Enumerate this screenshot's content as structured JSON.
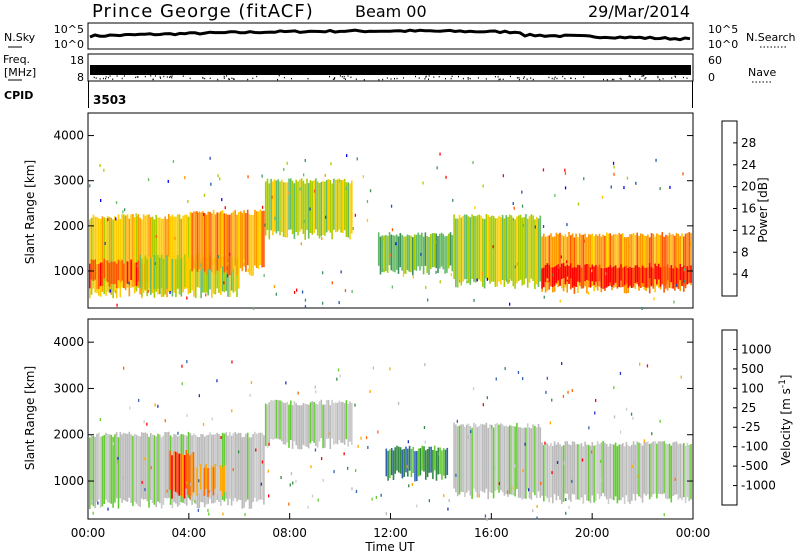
{
  "header": {
    "station": "Prince George (fitACF)",
    "beam": "Beam 00",
    "date": "29/Mar/2014"
  },
  "strip_noise": {
    "left_label": "N.Sky",
    "right_label": "N.Search",
    "left_ticks": [
      "10^5",
      "10^0"
    ],
    "right_ticks": [
      "10^5",
      "10^0"
    ]
  },
  "strip_freq": {
    "left_label_1": "Freq.",
    "left_label_2": "[MHz]",
    "right_label": "Nave",
    "left_ticks": [
      "18",
      "8"
    ],
    "right_ticks": [
      "60",
      "0"
    ]
  },
  "cpid": {
    "label": "CPID",
    "value": "3503"
  },
  "colors": {
    "power": [
      "#0000ff",
      "#1f4fb0",
      "#3f8f5f",
      "#66bb66",
      "#aacc00",
      "#ffcc00",
      "#ff9900",
      "#ff5500",
      "#ff0000"
    ],
    "velocity": [
      "#2030c0",
      "#3060b0",
      "#338844",
      "#66cc33",
      "#bbbbbb",
      "#cccccc",
      "#ffaa00",
      "#ff6600",
      "#ff0000"
    ]
  },
  "chart_data": [
    {
      "type": "heatmap",
      "name": "power",
      "title": "",
      "xlabel": "",
      "ylabel": "Slant Range [km]",
      "xlim": [
        0,
        24
      ],
      "ylim": [
        180,
        4500
      ],
      "yticks": [
        1000,
        2000,
        3000,
        4000
      ],
      "colorbar_label": "Power [dB]",
      "colorbar_ticks": [
        "28",
        "24",
        "20",
        "16",
        "12",
        "8",
        "4"
      ],
      "bands": [
        {
          "t0": 0.0,
          "t1": 4.0,
          "r0": 500,
          "r1": 2200,
          "level": 5
        },
        {
          "t0": 0.0,
          "t1": 2.5,
          "r0": 700,
          "r1": 1200,
          "level": 7
        },
        {
          "t0": 2.0,
          "t1": 6.0,
          "r0": 500,
          "r1": 1300,
          "level": 4
        },
        {
          "t0": 4.0,
          "t1": 7.0,
          "r0": 1000,
          "r1": 2300,
          "level": 6
        },
        {
          "t0": 7.0,
          "t1": 10.5,
          "r0": 1800,
          "r1": 3000,
          "level": 4
        },
        {
          "t0": 11.5,
          "t1": 14.5,
          "r0": 1000,
          "r1": 1800,
          "level": 3
        },
        {
          "t0": 14.5,
          "t1": 18.0,
          "r0": 700,
          "r1": 2200,
          "level": 4
        },
        {
          "t0": 18.0,
          "t1": 24.0,
          "r0": 600,
          "r1": 1800,
          "level": 6
        },
        {
          "t0": 18.0,
          "t1": 24.0,
          "r0": 700,
          "r1": 1100,
          "level": 8
        }
      ]
    },
    {
      "type": "heatmap",
      "name": "velocity",
      "title": "",
      "xlabel": "Time UT",
      "ylabel": "Slant Range [km]",
      "xlim": [
        0,
        24
      ],
      "ylim": [
        180,
        4500
      ],
      "xticks": [
        "00:00",
        "04:00",
        "08:00",
        "12:00",
        "16:00",
        "20:00",
        "00:00"
      ],
      "yticks": [
        1000,
        2000,
        3000,
        4000
      ],
      "colorbar_label": "Velocity [m s^-1]",
      "colorbar_ticks": [
        "1000",
        "500",
        "100",
        "25",
        "-25",
        "-100",
        "-500",
        "-1000"
      ],
      "bands": [
        {
          "t0": 0.0,
          "t1": 7.0,
          "r0": 500,
          "r1": 2000,
          "level": 4
        },
        {
          "t0": 3.2,
          "t1": 4.2,
          "r0": 700,
          "r1": 1600,
          "level": 7
        },
        {
          "t0": 4.2,
          "t1": 5.5,
          "r0": 700,
          "r1": 1300,
          "level": 6
        },
        {
          "t0": 7.0,
          "t1": 10.5,
          "r0": 1800,
          "r1": 2700,
          "level": 4
        },
        {
          "t0": 11.8,
          "t1": 14.3,
          "r0": 1100,
          "r1": 1700,
          "level": 2
        },
        {
          "t0": 14.5,
          "t1": 18.0,
          "r0": 700,
          "r1": 2200,
          "level": 4
        },
        {
          "t0": 18.0,
          "t1": 24.0,
          "r0": 600,
          "r1": 1800,
          "level": 4
        }
      ]
    }
  ]
}
